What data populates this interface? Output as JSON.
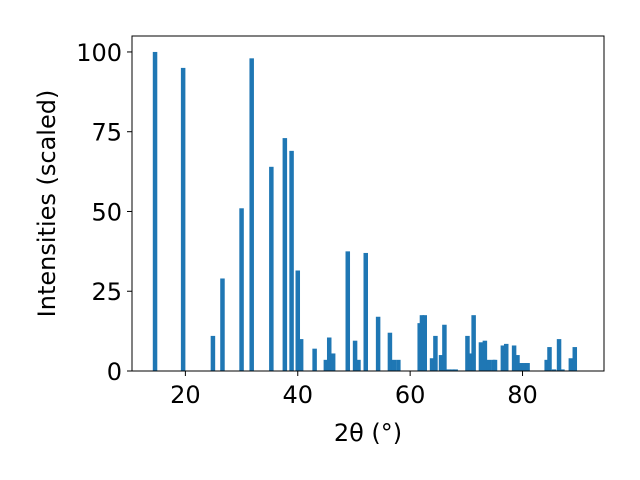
{
  "chart_data": {
    "type": "bar",
    "title": "",
    "xlabel": "2θ (°)",
    "ylabel": "Intensities (scaled)",
    "xlim": [
      10.5,
      94.5
    ],
    "ylim": [
      0,
      105
    ],
    "xticks": [
      20,
      40,
      60,
      80
    ],
    "yticks": [
      0,
      25,
      50,
      75,
      100
    ],
    "grid": false,
    "bar_color": "#1f77b4",
    "bar_width": 0.8,
    "x": [
      14.6,
      19.6,
      24.9,
      26.6,
      30.0,
      31.8,
      35.3,
      37.7,
      38.9,
      40.0,
      40.6,
      43.0,
      45.0,
      45.6,
      46.3,
      48.9,
      50.2,
      50.8,
      52.1,
      54.3,
      56.4,
      57.1,
      57.9,
      61.7,
      62.1,
      62.6,
      63.9,
      64.5,
      65.5,
      66.1,
      66.8,
      67.5,
      68.1,
      70.2,
      70.7,
      71.3,
      72.6,
      73.3,
      74.0,
      74.8,
      75.1,
      76.5,
      77.1,
      78.5,
      79.1,
      79.6,
      80.3,
      80.9,
      84.3,
      84.8,
      85.6,
      86.5,
      87.1,
      88.6,
      89.3
    ],
    "values": [
      100,
      95,
      11,
      29,
      51,
      98,
      64,
      73,
      69,
      31.5,
      10,
      7,
      3.5,
      10.5,
      5.5,
      37.5,
      9.5,
      3.5,
      37,
      17,
      12,
      3.5,
      3.5,
      15,
      17.5,
      17.5,
      4,
      11,
      5,
      14.5,
      0.5,
      0.5,
      0.5,
      11,
      5.5,
      17.5,
      9,
      9.5,
      3.5,
      3.5,
      3.5,
      8,
      8.5,
      8,
      5,
      2.5,
      2.5,
      2.5,
      3.5,
      7.5,
      0.5,
      10,
      0.5,
      4,
      7.5
    ]
  }
}
